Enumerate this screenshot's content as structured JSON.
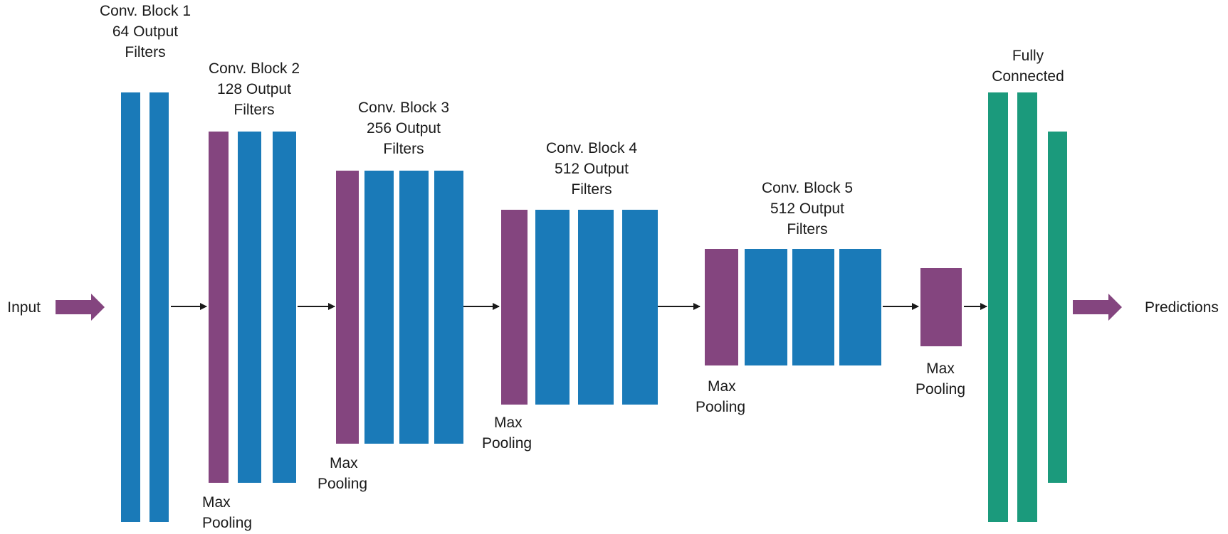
{
  "diagram": {
    "input_label": "Input",
    "output_label": "Predictions",
    "blocks": [
      {
        "line1": "Conv. Block 1",
        "line2": "64 Output",
        "line3": "Filters"
      },
      {
        "line1": "Conv. Block 2",
        "line2": "128 Output",
        "line3": "Filters"
      },
      {
        "line1": "Conv. Block 3",
        "line2": "256 Output",
        "line3": "Filters"
      },
      {
        "line1": "Conv. Block 4",
        "line2": "512 Output",
        "line3": "Filters"
      },
      {
        "line1": "Conv. Block 5",
        "line2": "512 Output",
        "line3": "Filters"
      }
    ],
    "pool_labels": [
      {
        "line1": "Max",
        "line2": "Pooling"
      },
      {
        "line1": "Max",
        "line2": "Pooling"
      },
      {
        "line1": "Max",
        "line2": "Pooling"
      },
      {
        "line1": "Max",
        "line2": "Pooling"
      },
      {
        "line1": "Max",
        "line2": "Pooling"
      }
    ],
    "fc_label": {
      "line1": "Fully",
      "line2": "Connected"
    },
    "colors": {
      "conv": "#1a7ab8",
      "pool": "#84457f",
      "fc": "#1b9a7c",
      "io_arrow": "#84457f",
      "connector": "#1a1a1a"
    }
  }
}
